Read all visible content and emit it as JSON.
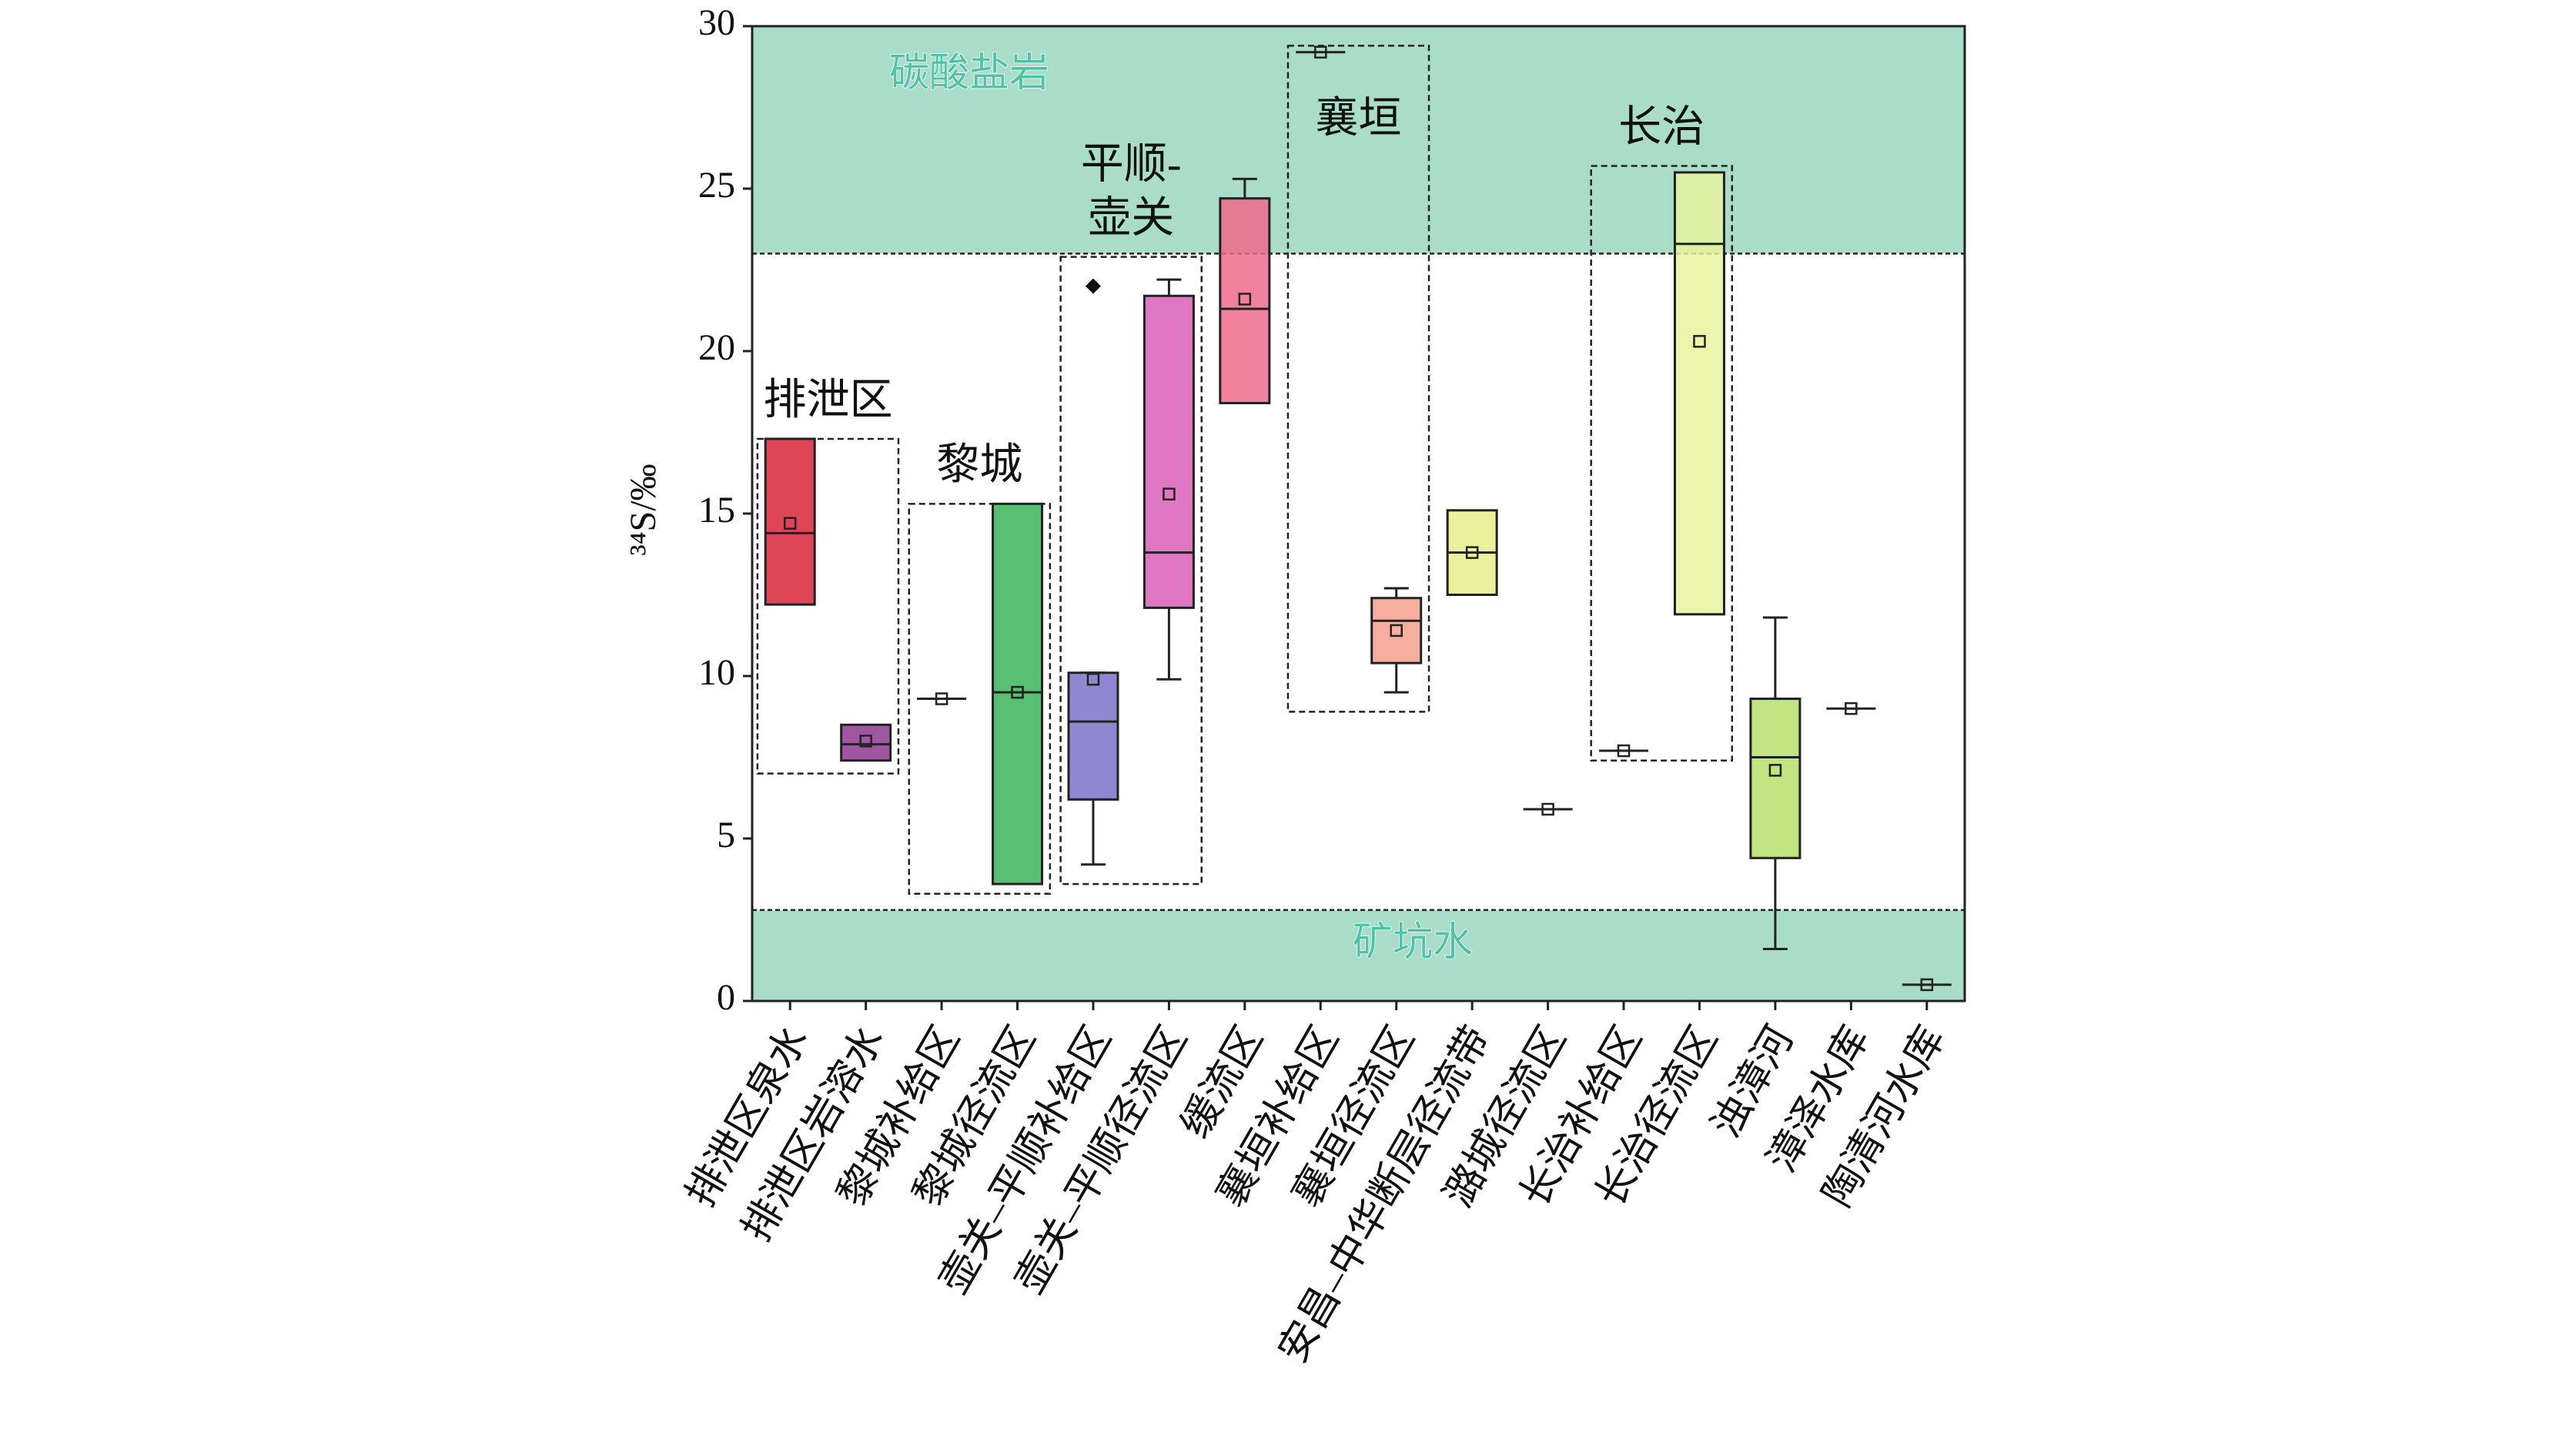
{
  "chart_data": {
    "type": "box",
    "y_label": "³⁴S/‰",
    "categories": [
      "排泄区泉水",
      "排泄区岩溶水",
      "黎城补给区",
      "黎城径流区",
      "壶关–平顺补给区",
      "壶关–平顺径流区",
      "缓流区",
      "襄垣补给区",
      "襄垣径流区",
      "安昌–中华断层径流带",
      "潞城径流区",
      "长治补给区",
      "长治径流区",
      "浊漳河",
      "漳泽水库",
      "陶清河水库"
    ],
    "boxes": [
      {
        "q1": 12.2,
        "median": 14.4,
        "q3": 17.3,
        "mean": 14.7,
        "color": "#d8243a"
      },
      {
        "q1": 7.4,
        "median": 7.9,
        "q3": 8.5,
        "mean": 8.0,
        "color": "#8e3a90"
      },
      {
        "mean": 9.3
      },
      {
        "q1": 3.6,
        "median": 9.5,
        "q3": 15.3,
        "mean": 9.5,
        "color": "#3cb45a"
      },
      {
        "min": 4.2,
        "q1": 6.2,
        "median": 8.6,
        "q3": 10.1,
        "max": 10.1,
        "mean": 9.9,
        "outliers": [
          22.0
        ],
        "color": "#7b72c8"
      },
      {
        "min": 9.9,
        "q1": 12.1,
        "median": 13.8,
        "q3": 21.7,
        "max": 22.2,
        "mean": 15.6,
        "color": "#d95fb8"
      },
      {
        "q1": 18.4,
        "median": 21.3,
        "q3": 24.7,
        "max": 25.3,
        "mean": 21.6,
        "color": "#ee6a8c"
      },
      {
        "mean": 29.2
      },
      {
        "min": 9.5,
        "q1": 10.4,
        "median": 11.7,
        "q3": 12.4,
        "max": 12.7,
        "mean": 11.4,
        "color": "#f5a08f"
      },
      {
        "q1": 12.5,
        "median": 13.8,
        "q3": 15.1,
        "mean": 13.8,
        "color": "#e6ef8a"
      },
      {
        "mean": 5.9
      },
      {
        "mean": 7.7
      },
      {
        "q1": 11.9,
        "median": 23.3,
        "q3": 25.5,
        "mean": 20.3,
        "color": "#e8f39c"
      },
      {
        "min": 1.6,
        "q1": 4.4,
        "median": 7.5,
        "q3": 9.3,
        "max": 11.8,
        "mean": 7.1,
        "color": "#b6e06a"
      },
      {
        "mean": 9.0
      },
      {
        "mean": 0.5
      }
    ],
    "bands": [
      {
        "label": "碳酸盐岩",
        "range": [
          23,
          30
        ],
        "color": "#a9dcc9"
      },
      {
        "label": "矿坑水",
        "range": [
          0,
          2.8
        ],
        "color": "#a9dcc9"
      }
    ],
    "groups": [
      {
        "label": [
          "排泄区"
        ],
        "range": [
          7.0,
          17.3
        ]
      },
      {
        "label": [
          "黎城"
        ],
        "range": [
          3.3,
          15.3
        ]
      },
      {
        "label": [
          "平顺-",
          "壶关"
        ],
        "range": [
          3.6,
          22.9
        ]
      },
      {
        "label": [
          "襄垣"
        ],
        "range": [
          8.9,
          29.4
        ]
      },
      {
        "label": [
          "长治"
        ],
        "range": [
          7.4,
          25.7
        ]
      }
    ],
    "ylim": [
      0,
      30
    ],
    "yticks": [
      0,
      5,
      10,
      15,
      20,
      25,
      30
    ]
  }
}
